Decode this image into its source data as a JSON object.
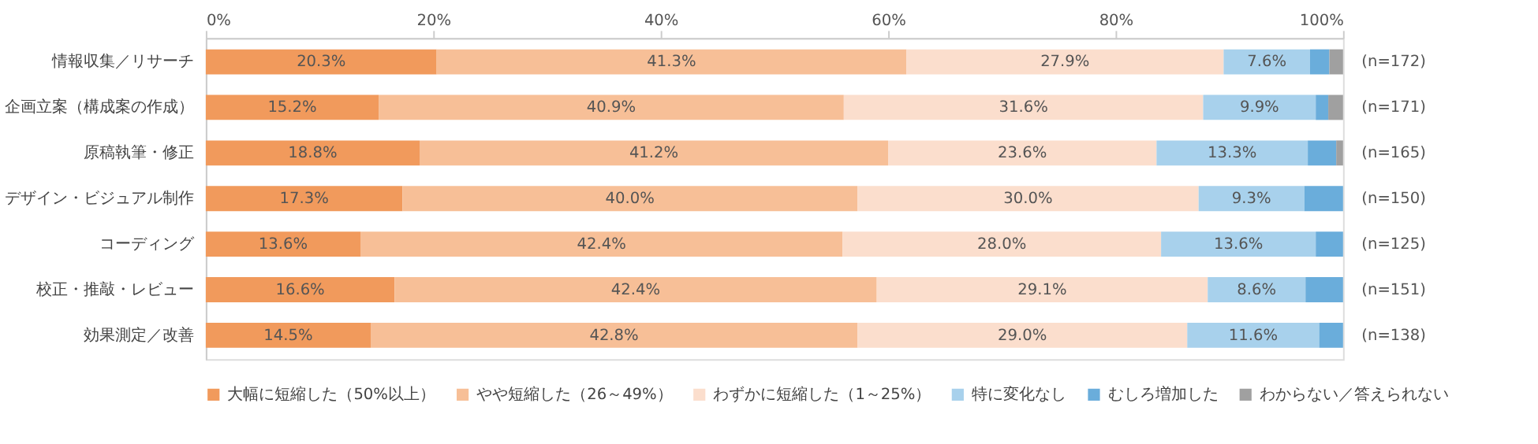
{
  "chart_data": {
    "type": "bar",
    "orientation": "horizontal",
    "stacked": true,
    "categories": [
      "情報収集／リサーチ",
      "企画立案（構成案の作成）",
      "原稿執筆・修正",
      "デザイン・ビジュアル制作",
      "コーディング",
      "校正・推敲・レビュー",
      "効果測定／改善"
    ],
    "series": [
      {
        "name": "大幅に短縮した（50%以上）",
        "color": "#f19a5c",
        "values": [
          20.3,
          15.2,
          18.8,
          17.3,
          13.6,
          16.6,
          14.5
        ],
        "value_labels": [
          "20.3%",
          "15.2%",
          "18.8%",
          "17.3%",
          "13.6%",
          "16.6%",
          "14.5%"
        ]
      },
      {
        "name": "やや短縮した（26～49%）",
        "color": "#f7bf97",
        "values": [
          41.3,
          40.9,
          41.2,
          40.0,
          42.4,
          42.4,
          42.8
        ],
        "value_labels": [
          "41.3%",
          "40.9%",
          "41.2%",
          "40.0%",
          "42.4%",
          "42.4%",
          "42.8%"
        ]
      },
      {
        "name": "わずかに短縮した（1～25%）",
        "color": "#fbdecd",
        "values": [
          27.9,
          31.6,
          23.6,
          30.0,
          28.0,
          29.1,
          29.0
        ],
        "value_labels": [
          "27.9%",
          "31.6%",
          "23.6%",
          "30.0%",
          "28.0%",
          "29.1%",
          "29.0%"
        ]
      },
      {
        "name": "特に変化なし",
        "color": "#a8d1ec",
        "values": [
          7.6,
          9.9,
          13.3,
          9.3,
          13.6,
          8.6,
          11.6
        ],
        "value_labels": [
          "7.6%",
          "9.9%",
          "13.3%",
          "9.3%",
          "13.6%",
          "8.6%",
          "11.6%"
        ]
      },
      {
        "name": "むしろ増加した",
        "color": "#6aaddb",
        "values": [
          1.7,
          1.1,
          2.5,
          3.4,
          2.4,
          3.3,
          2.1
        ]
      },
      {
        "name": "わからない／答えられない",
        "color": "#a0a0a0",
        "values": [
          1.2,
          1.3,
          0.6,
          0,
          0,
          0,
          0
        ]
      }
    ],
    "xlim": [
      0,
      100
    ],
    "xticks": [
      {
        "value": 0,
        "label": "0%"
      },
      {
        "value": 20,
        "label": "20%"
      },
      {
        "value": 40,
        "label": "40%"
      },
      {
        "value": 60,
        "label": "60%"
      },
      {
        "value": 80,
        "label": "80%"
      },
      {
        "value": 100,
        "label": "100%"
      }
    ],
    "annotations": [
      "(n=172)",
      "(n=171)",
      "(n=165)",
      "(n=150)",
      "(n=125)",
      "(n=151)",
      "(n=138)"
    ],
    "legend": "bottom",
    "grid": false
  }
}
